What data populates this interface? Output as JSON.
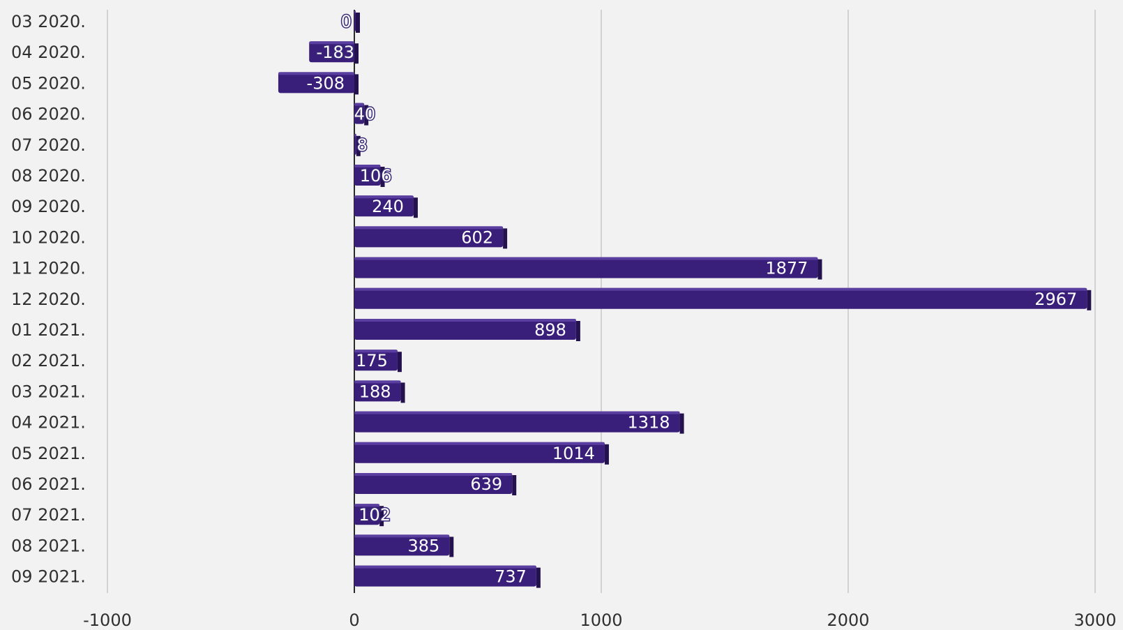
{
  "chart_data": {
    "type": "bar",
    "orientation": "horizontal",
    "categories": [
      "03 2020.",
      "04 2020.",
      "05 2020.",
      "06 2020.",
      "07 2020.",
      "08 2020.",
      "09 2020.",
      "10 2020.",
      "11 2020.",
      "12 2020.",
      "01 2021.",
      "02 2021.",
      "03 2021.",
      "04 2021.",
      "05 2021.",
      "06 2021.",
      "07 2021.",
      "08 2021.",
      "09 2021."
    ],
    "values": [
      0,
      -183,
      -308,
      40,
      8,
      106,
      240,
      602,
      1877,
      2967,
      898,
      175,
      188,
      1318,
      1014,
      639,
      102,
      385,
      737
    ],
    "xlim": [
      -1000,
      3000
    ],
    "xticks": [
      "-1000",
      "0",
      "1000",
      "2000",
      "3000"
    ],
    "title": "",
    "xlabel": "",
    "ylabel": "",
    "grid": true,
    "legend": "none",
    "colors": {
      "bar": "#3a1f7a",
      "bar_top": "#5a3fa0",
      "bar_side": "#24124f",
      "background": "#f2f2f2"
    }
  }
}
